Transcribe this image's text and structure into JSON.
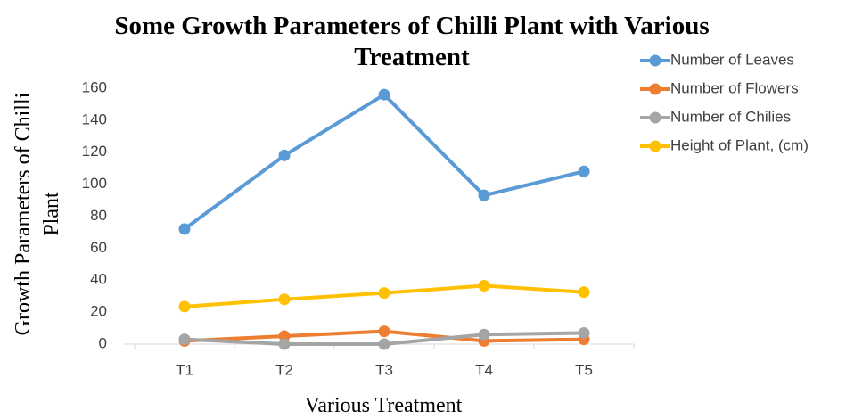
{
  "chart_data": {
    "type": "line",
    "title": "Some Growth Parameters of Chilli Plant with Various Treatment",
    "x_label": "Various Treatment",
    "y_label": "Growth Parameters of Chilli Plant",
    "categories": [
      "T1",
      "T2",
      "T3",
      "T4",
      "T5"
    ],
    "series": [
      {
        "name": "Number of  Leaves",
        "color": "#5b9bd5",
        "values": [
          72,
          118,
          156,
          93,
          108
        ]
      },
      {
        "name": "Number of  Flowers",
        "color": "#ed7d31",
        "values": [
          2,
          5,
          8,
          2,
          3
        ]
      },
      {
        "name": "Number of  Chilies",
        "color": "#a5a5a5",
        "values": [
          3,
          0,
          0,
          6,
          7
        ]
      },
      {
        "name": "Height of Plant, (cm)",
        "color": "#ffc000",
        "values": [
          23.5,
          28,
          32,
          36.5,
          32.5
        ]
      }
    ],
    "ylim": [
      0,
      160
    ],
    "yticks": [
      0,
      20,
      40,
      60,
      80,
      100,
      120,
      140,
      160
    ],
    "grid": false,
    "legend": "top-right"
  }
}
